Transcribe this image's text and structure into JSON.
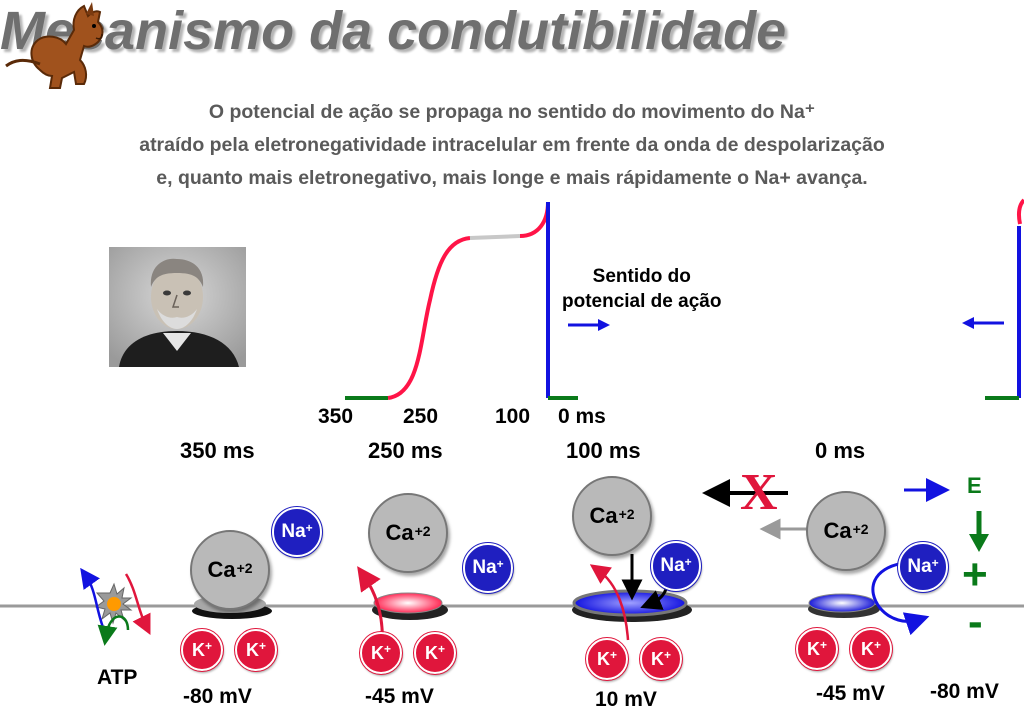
{
  "title": "Mecanismo da condutibilidade",
  "subtitle_lines": [
    "O potencial de ação se propaga no sentido do movimento do Na⁺",
    "atraído pela eletronegatividade intracelular em frente da onda de despolarização",
    "e, quanto mais eletronegativo, mais longe e mais rápidamente o Na+ avança."
  ],
  "direction_label": [
    "Sentido do",
    "potencial de ação"
  ],
  "axis_ticks": [
    "350",
    "250",
    "100",
    "0 ms"
  ],
  "time_labels": [
    "350 ms",
    "250 ms",
    "100 ms",
    "0 ms"
  ],
  "ion_labels": {
    "ca": "Ca",
    "ca_charge": "+2",
    "na": "Na",
    "na_charge": "+",
    "k": "K",
    "k_charge": "+"
  },
  "atp_label": "ATP",
  "x_mark": "X",
  "field_labels": {
    "e": "E",
    "plus": "+",
    "minus": "-"
  },
  "voltages": [
    "-80 mV",
    "-45 mV",
    "10 mV",
    "-45 mV",
    "-80 mV"
  ],
  "colors": {
    "membrane": "#9a9a9a",
    "na": "#1f1fc0",
    "k": "#e0163c",
    "ca": "#b9b9b9",
    "trace_red": "#ff1447",
    "trace_green": "#0a7a1a",
    "trace_blue": "#1212e0",
    "plateau": "#c8c8c8"
  },
  "icons": [
    "donkey-logo",
    "portrait-photo",
    "atp-pump-icon",
    "arrow-right-icon",
    "arrow-left-icon"
  ]
}
